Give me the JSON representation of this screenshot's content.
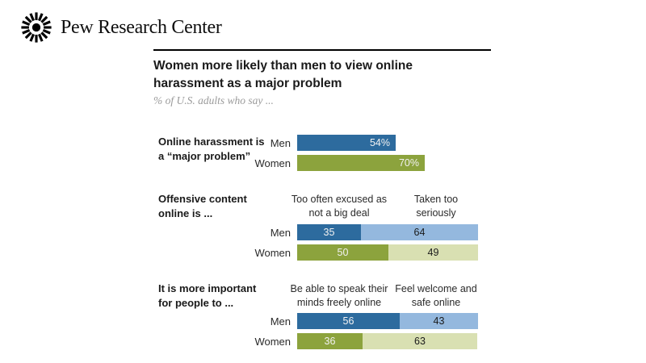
{
  "header": {
    "logo_text": "Pew Research Center"
  },
  "colors": {
    "men_dark_blue": "#2d6b9e",
    "men_light_blue": "#94b8de",
    "women_dark_olive": "#8ca33d",
    "women_light_green": "#d9e0b2",
    "value_label_light": "#f2f2f2",
    "value_label_dark": "#1a1a1a"
  },
  "chart_data": {
    "type": "bar",
    "orientation": "horizontal",
    "title": "Women more likely than men to view online harassment as a major problem",
    "title_lines": [
      "Women more likely than men to view online",
      "harassment as a major problem"
    ],
    "subtitle": "% of U.S. adults who say ...",
    "value_unit": "percent",
    "xlim": [
      0,
      100
    ],
    "grid": false,
    "legend": "none",
    "groups": [
      {
        "label": "Online harassment is a “major problem”",
        "label_lines": [
          "Online harassment is",
          "a “major problem”"
        ],
        "bar_type": "single",
        "rows": [
          {
            "category": "Men",
            "value": 54,
            "display": "54%"
          },
          {
            "category": "Women",
            "value": 70,
            "display": "70%"
          }
        ]
      },
      {
        "label": "Offensive content online is ...",
        "label_lines": [
          "Offensive content",
          "online is ..."
        ],
        "bar_type": "stacked",
        "segment_headers": [
          {
            "lines": [
              "Too often excused as",
              "not a big deal"
            ]
          },
          {
            "lines": [
              "Taken too",
              "seriously"
            ]
          }
        ],
        "rows": [
          {
            "category": "Men",
            "values": [
              35,
              64
            ]
          },
          {
            "category": "Women",
            "values": [
              50,
              49
            ]
          }
        ]
      },
      {
        "label": "It is more important for people to ...",
        "label_lines": [
          "It is more important",
          "for people to ..."
        ],
        "bar_type": "stacked",
        "segment_headers": [
          {
            "lines": [
              "Be able to speak their",
              "minds freely online"
            ]
          },
          {
            "lines": [
              "Feel welcome and",
              "safe online"
            ]
          }
        ],
        "rows": [
          {
            "category": "Men",
            "values": [
              56,
              43
            ]
          },
          {
            "category": "Women",
            "values": [
              36,
              63
            ]
          }
        ]
      }
    ]
  }
}
